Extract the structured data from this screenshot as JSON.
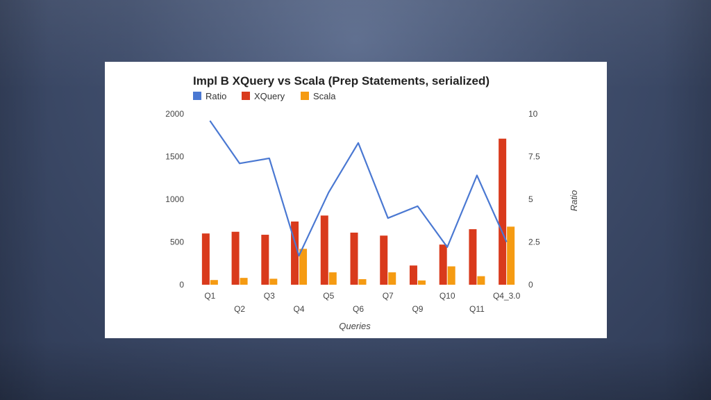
{
  "slide": {
    "background": "#3f4d6b"
  },
  "chart_data": {
    "type": "bar",
    "title": "Impl B XQuery vs Scala (Prep Statements, serialized)",
    "xlabel": "Queries",
    "ylabel": "",
    "y2label": "Ratio",
    "categories": [
      "Q1",
      "Q2",
      "Q3",
      "Q4",
      "Q5",
      "Q6",
      "Q7",
      "Q9",
      "Q10",
      "Q11",
      "Q4_3.0"
    ],
    "ylim": [
      0,
      2000
    ],
    "y2lim": [
      0,
      10
    ],
    "yticks": [
      "0",
      "500",
      "1000",
      "1500",
      "2000"
    ],
    "y2ticks": [
      "0",
      "2.5",
      "5",
      "7.5",
      "10"
    ],
    "legend_position": "top-left",
    "grid": false,
    "series": [
      {
        "name": "Ratio",
        "type": "line",
        "axis": "right",
        "color": "#4a78d2",
        "values": [
          9.6,
          7.1,
          7.4,
          1.7,
          5.4,
          8.3,
          3.9,
          4.6,
          2.2,
          6.4,
          2.5
        ]
      },
      {
        "name": "XQuery",
        "type": "bar",
        "axis": "left",
        "color": "#d93a1c",
        "values": [
          600,
          620,
          585,
          740,
          810,
          610,
          575,
          225,
          470,
          650,
          1710
        ]
      },
      {
        "name": "Scala",
        "type": "bar",
        "axis": "left",
        "color": "#f59b12",
        "values": [
          55,
          80,
          70,
          420,
          145,
          65,
          145,
          50,
          215,
          100,
          680
        ]
      }
    ]
  }
}
